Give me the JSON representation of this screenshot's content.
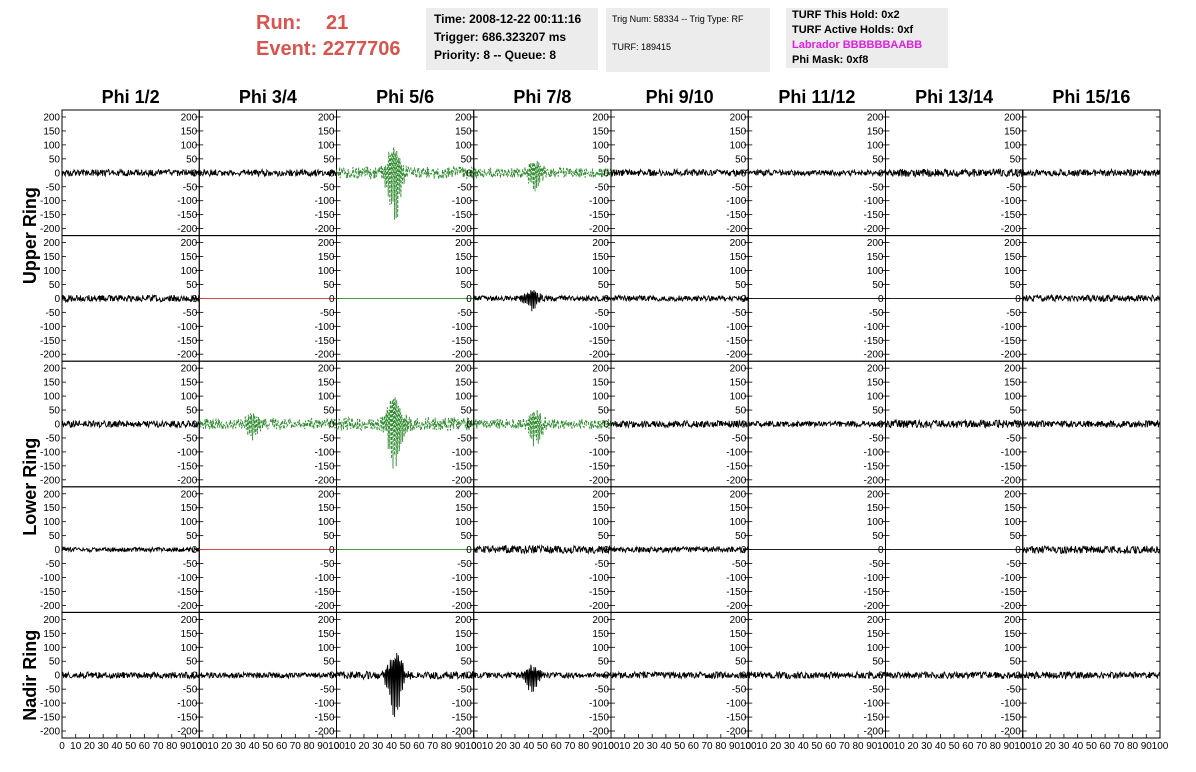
{
  "header": {
    "run_label": "Run:",
    "run_value": "21",
    "event_label": "Event:",
    "event_value": "2277706",
    "box1": [
      "Time: 2008-12-22 00:11:16",
      "Trigger: 686.323207 ms",
      "Priority: 8 -- Queue: 8"
    ],
    "box2": [
      "Trig Num: 58334 -- Trig Type: RF",
      "TURF: 189415"
    ],
    "box3": [
      "TURF This Hold: 0x2",
      "TURF Active Holds: 0xf",
      "Labrador BBBBBBAABB",
      "Phi Mask: 0xf8"
    ]
  },
  "colors": {
    "run": "#d9534f",
    "labrador": "#e020e0",
    "trace": "#000000",
    "highlight": "#2e8b2e",
    "dead": "#cc3333",
    "flat": "#000000"
  },
  "chart_data": {
    "type": "line",
    "columns": [
      "Phi 1/2",
      "Phi 3/4",
      "Phi 5/6",
      "Phi 7/8",
      "Phi 9/10",
      "Phi 11/12",
      "Phi 13/14",
      "Phi 15/16"
    ],
    "rows": [
      "Upper Ring",
      "Upper Ring",
      "Lower Ring",
      "Lower Ring",
      "Nadir Ring"
    ],
    "ring_labels": [
      "Upper Ring",
      "Lower Ring",
      "Nadir Ring"
    ],
    "ylim": [
      -225,
      225
    ],
    "yticks": [
      -200,
      -150,
      -100,
      -50,
      0,
      50,
      100,
      150,
      200
    ],
    "xlim": [
      0,
      100
    ],
    "xticks": [
      0,
      10,
      20,
      30,
      40,
      50,
      60,
      70,
      80,
      90,
      100
    ],
    "noise_amplitude": 12,
    "panels": [
      [
        {
          "style": "black",
          "amp": 12
        },
        {
          "style": "black",
          "amp": 12
        },
        {
          "style": "green",
          "amp": 22,
          "peak": 175,
          "center": 42
        },
        {
          "style": "green",
          "amp": 18,
          "peak": 70,
          "center": 45
        },
        {
          "style": "black",
          "amp": 12
        },
        {
          "style": "black",
          "amp": 10
        },
        {
          "style": "black",
          "amp": 14
        },
        {
          "style": "black",
          "amp": 12
        }
      ],
      [
        {
          "style": "black",
          "amp": 12
        },
        {
          "style": "dead",
          "amp": 0
        },
        {
          "style": "greenflat",
          "amp": 0
        },
        {
          "style": "black",
          "amp": 10,
          "peak": 40,
          "center": 42
        },
        {
          "style": "black",
          "amp": 10
        },
        {
          "style": "flat",
          "amp": 0
        },
        {
          "style": "flat",
          "amp": 0
        },
        {
          "style": "black",
          "amp": 12
        }
      ],
      [
        {
          "style": "black",
          "amp": 12
        },
        {
          "style": "green",
          "amp": 20,
          "peak": 45,
          "center": 38
        },
        {
          "style": "green",
          "amp": 24,
          "peak": 175,
          "center": 42
        },
        {
          "style": "green",
          "amp": 18,
          "peak": 75,
          "center": 45
        },
        {
          "style": "black",
          "amp": 12
        },
        {
          "style": "black",
          "amp": 10
        },
        {
          "style": "black",
          "amp": 14
        },
        {
          "style": "black",
          "amp": 12
        }
      ],
      [
        {
          "style": "black",
          "amp": 8
        },
        {
          "style": "dead",
          "amp": 0
        },
        {
          "style": "greenflat",
          "amp": 0
        },
        {
          "style": "black",
          "amp": 14
        },
        {
          "style": "black",
          "amp": 10
        },
        {
          "style": "flat",
          "amp": 0
        },
        {
          "style": "flat",
          "amp": 0
        },
        {
          "style": "black",
          "amp": 14
        }
      ],
      [
        {
          "style": "black",
          "amp": 12
        },
        {
          "style": "black",
          "amp": 10
        },
        {
          "style": "black",
          "amp": 14,
          "peak": 150,
          "center": 43
        },
        {
          "style": "black",
          "amp": 10,
          "peak": 55,
          "center": 42
        },
        {
          "style": "black",
          "amp": 12
        },
        {
          "style": "black",
          "amp": 12
        },
        {
          "style": "black",
          "amp": 12
        },
        {
          "style": "black",
          "amp": 12
        }
      ]
    ]
  }
}
